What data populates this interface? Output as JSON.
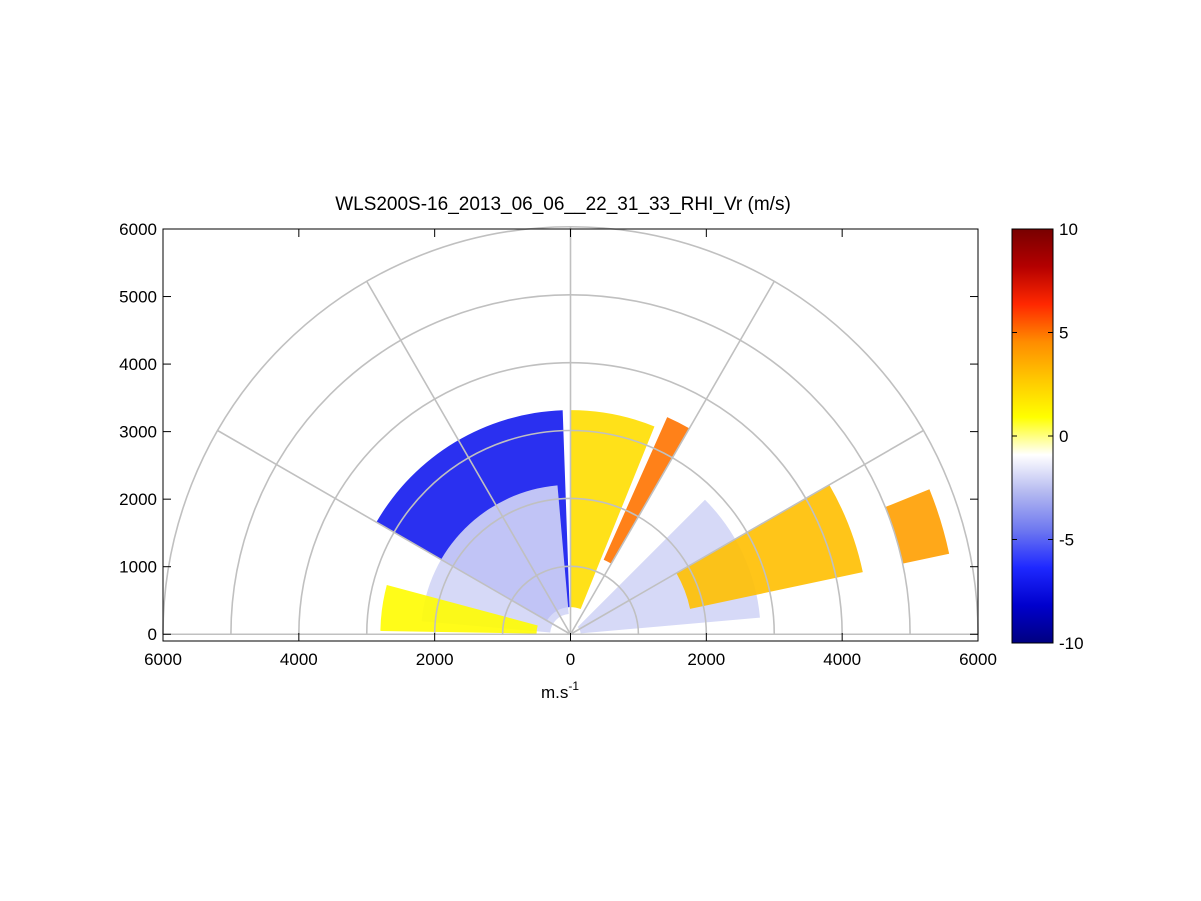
{
  "chart_data": {
    "type": "heatmap",
    "subtype": "polar RHI scan (half-disc)",
    "title": "WLS200S-16_2013_06_06__22_31_33_RHI_Vr (m/s)",
    "xlabel_base": "m.s",
    "xlabel_sup": "-1",
    "ylabel": "",
    "xlim": [
      -6000,
      6000
    ],
    "ylim": [
      -100,
      6000
    ],
    "x_ticks": [
      -6000,
      -4000,
      -2000,
      0,
      2000,
      4000,
      6000
    ],
    "x_tick_labels": [
      "6000",
      "4000",
      "2000",
      "0",
      "2000",
      "4000",
      "6000"
    ],
    "y_ticks": [
      0,
      1000,
      2000,
      3000,
      4000,
      5000,
      6000
    ],
    "y_tick_labels": [
      "0",
      "1000",
      "2000",
      "3000",
      "4000",
      "5000",
      "6000"
    ],
    "polar_grid": {
      "rings_m": [
        1000,
        2000,
        3000,
        4000,
        5000,
        6000
      ],
      "spokes_deg": [
        0,
        30,
        60,
        90,
        120,
        150,
        180
      ]
    },
    "colorbar": {
      "min": -10,
      "max": 10,
      "ticks": [
        -10,
        -5,
        0,
        5,
        10
      ],
      "tick_labels": [
        "-10",
        "-5",
        "0",
        "5",
        "10"
      ],
      "colors": [
        "#000080",
        "#0000cd",
        "#1e28ff",
        "#6e78f0",
        "#b4b9f0",
        "#ffffff",
        "#ffff00",
        "#ffc800",
        "#ff8c00",
        "#ff2800",
        "#b40000",
        "#780000"
      ]
    },
    "regions": [
      {
        "az_from": 92,
        "az_to": 150,
        "r_from": 400,
        "r_to": 3300,
        "value": -7,
        "note": "strong negative radial velocity, upper left"
      },
      {
        "az_from": 95,
        "az_to": 175,
        "r_from": 300,
        "r_to": 2200,
        "value": -2,
        "note": "weak negative, near field left"
      },
      {
        "az_from": 165,
        "az_to": 179,
        "r_from": 500,
        "r_to": 2800,
        "value": 1,
        "note": "yellow band near left horizon"
      },
      {
        "az_from": 68,
        "az_to": 90,
        "r_from": 400,
        "r_to": 3300,
        "value": 2,
        "note": "yellow/orange wedge just right of zenith"
      },
      {
        "az_from": 60,
        "az_to": 66,
        "r_from": 1200,
        "r_to": 3500,
        "value": 5,
        "note": "orange-red streak"
      },
      {
        "az_from": 5,
        "az_to": 45,
        "r_from": 150,
        "r_to": 2800,
        "value": -2,
        "note": "weak negative, lower right"
      },
      {
        "az_from": 12,
        "az_to": 30,
        "r_from": 1800,
        "r_to": 4400,
        "value": 3,
        "note": "orange band, right"
      },
      {
        "az_from": 12,
        "az_to": 22,
        "r_from": 5000,
        "r_to": 5700,
        "value": 4,
        "note": "orange/red cluster, far right"
      }
    ]
  }
}
